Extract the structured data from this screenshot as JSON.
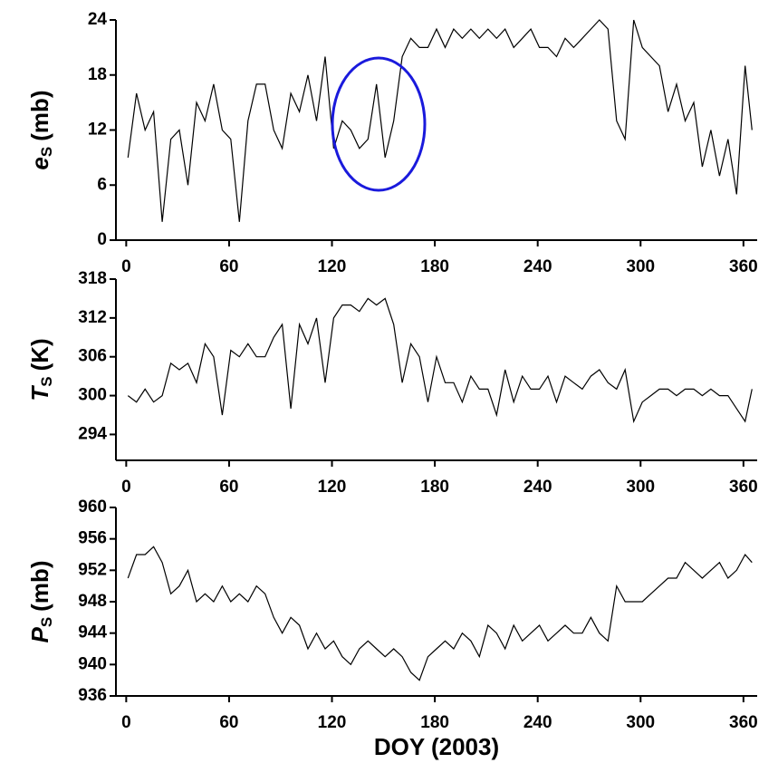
{
  "chart_data": [
    {
      "type": "line",
      "ylabel": {
        "symbol": "e",
        "subscript": "S",
        "unit": "(mb)"
      },
      "color": "#000000",
      "x": [
        1,
        6,
        11,
        16,
        21,
        26,
        31,
        36,
        41,
        46,
        51,
        56,
        61,
        66,
        71,
        76,
        81,
        86,
        91,
        96,
        101,
        106,
        111,
        116,
        121,
        126,
        131,
        136,
        141,
        146,
        151,
        156,
        161,
        166,
        171,
        176,
        181,
        186,
        191,
        196,
        201,
        206,
        211,
        216,
        221,
        226,
        231,
        236,
        241,
        246,
        251,
        256,
        261,
        266,
        271,
        276,
        281,
        286,
        291,
        296,
        301,
        306,
        311,
        316,
        321,
        326,
        331,
        336,
        341,
        346,
        351,
        356,
        361,
        365
      ],
      "values": [
        9,
        16,
        12,
        14,
        2,
        11,
        12,
        6,
        15,
        13,
        17,
        12,
        11,
        2,
        13,
        17,
        17,
        12,
        10,
        16,
        14,
        18,
        13,
        20,
        10,
        13,
        12,
        10,
        11,
        17,
        9,
        13,
        20,
        22,
        21,
        21,
        23,
        21,
        23,
        22,
        23,
        22,
        23,
        22,
        23,
        21,
        22,
        23,
        21,
        21,
        20,
        22,
        21,
        22,
        23,
        24,
        23,
        13,
        11,
        24,
        21,
        20,
        19,
        14,
        17,
        13,
        15,
        8,
        12,
        7,
        11,
        5,
        19,
        12
      ],
      "xlim": [
        -6,
        368
      ],
      "xticks": [
        0,
        60,
        120,
        180,
        240,
        300,
        360
      ],
      "ylim": [
        0,
        24
      ],
      "yticks": [
        0,
        6,
        12,
        18,
        24
      ]
    },
    {
      "type": "line",
      "ylabel": {
        "symbol": "T",
        "subscript": "S",
        "unit": "(K)"
      },
      "color": "#000000",
      "x": [
        1,
        6,
        11,
        16,
        21,
        26,
        31,
        36,
        41,
        46,
        51,
        56,
        61,
        66,
        71,
        76,
        81,
        86,
        91,
        96,
        101,
        106,
        111,
        116,
        121,
        126,
        131,
        136,
        141,
        146,
        151,
        156,
        161,
        166,
        171,
        176,
        181,
        186,
        191,
        196,
        201,
        206,
        211,
        216,
        221,
        226,
        231,
        236,
        241,
        246,
        251,
        256,
        261,
        266,
        271,
        276,
        281,
        286,
        291,
        296,
        301,
        306,
        311,
        316,
        321,
        326,
        331,
        336,
        341,
        346,
        351,
        356,
        361,
        365
      ],
      "values": [
        300,
        299,
        301,
        299,
        300,
        305,
        304,
        305,
        302,
        308,
        306,
        297,
        307,
        306,
        308,
        306,
        306,
        309,
        311,
        298,
        311,
        308,
        312,
        302,
        312,
        314,
        314,
        313,
        315,
        314,
        315,
        311,
        302,
        308,
        306,
        299,
        306,
        302,
        302,
        299,
        303,
        301,
        301,
        297,
        304,
        299,
        303,
        301,
        301,
        303,
        299,
        303,
        302,
        301,
        303,
        304,
        302,
        301,
        304,
        296,
        299,
        300,
        301,
        301,
        300,
        301,
        301,
        300,
        301,
        300,
        300,
        298,
        296,
        301
      ],
      "xlim": [
        -6,
        368
      ],
      "xticks": [
        0,
        60,
        120,
        180,
        240,
        300,
        360
      ],
      "ylim": [
        290,
        318
      ],
      "yticks": [
        294,
        300,
        306,
        312,
        318
      ]
    },
    {
      "type": "line",
      "ylabel": {
        "symbol": "P",
        "subscript": "S",
        "unit": "(mb)"
      },
      "xlabel": "DOY (2003)",
      "color": "#000000",
      "x": [
        1,
        6,
        11,
        16,
        21,
        26,
        31,
        36,
        41,
        46,
        51,
        56,
        61,
        66,
        71,
        76,
        81,
        86,
        91,
        96,
        101,
        106,
        111,
        116,
        121,
        126,
        131,
        136,
        141,
        146,
        151,
        156,
        161,
        166,
        171,
        176,
        181,
        186,
        191,
        196,
        201,
        206,
        211,
        216,
        221,
        226,
        231,
        236,
        241,
        246,
        251,
        256,
        261,
        266,
        271,
        276,
        281,
        286,
        291,
        296,
        301,
        306,
        311,
        316,
        321,
        326,
        331,
        336,
        341,
        346,
        351,
        356,
        361,
        365
      ],
      "values": [
        951,
        954,
        954,
        955,
        953,
        949,
        950,
        952,
        948,
        949,
        948,
        950,
        948,
        949,
        948,
        950,
        949,
        946,
        944,
        946,
        945,
        942,
        944,
        942,
        943,
        941,
        940,
        942,
        943,
        942,
        941,
        942,
        941,
        939,
        938,
        941,
        942,
        943,
        942,
        944,
        943,
        941,
        945,
        944,
        942,
        945,
        943,
        944,
        945,
        943,
        944,
        945,
        944,
        944,
        946,
        944,
        943,
        950,
        948,
        948,
        948,
        949,
        950,
        951,
        951,
        953,
        952,
        951,
        952,
        953,
        951,
        952,
        954,
        953
      ],
      "xlim": [
        -6,
        368
      ],
      "xticks": [
        0,
        60,
        120,
        180,
        240,
        300,
        360
      ],
      "ylim": [
        936,
        960
      ],
      "yticks": [
        936,
        940,
        944,
        948,
        952,
        956,
        960
      ]
    }
  ]
}
